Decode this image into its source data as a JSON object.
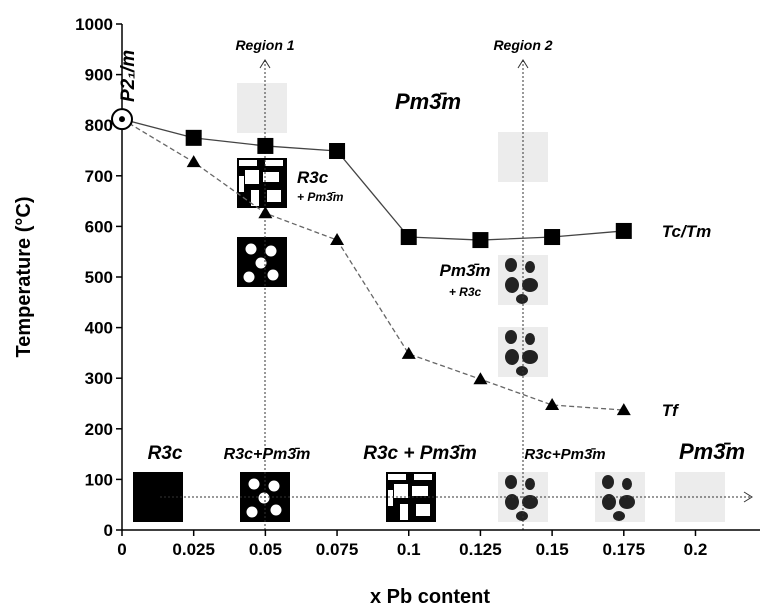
{
  "chart_data": {
    "type": "line",
    "xlabel": "x Pb content",
    "ylabel": "Temperature (°C)",
    "xlim": [
      0,
      0.2225
    ],
    "ylim": [
      0,
      1000
    ],
    "xticks": [
      0,
      0.025,
      0.05,
      0.075,
      0.1,
      0.125,
      0.15,
      0.175,
      0.2
    ],
    "yticks": [
      0,
      100,
      200,
      300,
      400,
      500,
      600,
      700,
      800,
      900,
      1000
    ],
    "transition": {
      "label": "P2₁/m",
      "x": 0,
      "value": 812
    },
    "series": [
      {
        "name": "Tc/Tm",
        "color": "#000000",
        "marker": "square",
        "dash": false,
        "x": [
          0.025,
          0.05,
          0.075,
          0.1,
          0.125,
          0.15,
          0.175
        ],
        "values": [
          775,
          759,
          749,
          579,
          573,
          579,
          591
        ]
      },
      {
        "name": "Tf",
        "color": "#000000",
        "marker": "triangle",
        "dash": true,
        "x": [
          0.025,
          0.05,
          0.075,
          0.1,
          0.125,
          0.15,
          0.175
        ],
        "values": [
          727,
          626,
          573,
          348,
          298,
          247,
          237
        ]
      }
    ],
    "annotations": [
      "Region 1",
      "Region 2",
      "Pm3̄m",
      "R3c",
      "+ Pm3̄m",
      "Pm3̄m",
      "+ R3c",
      "R3c",
      "R3c+Pm3̄m",
      "R3c + Pm3̄m",
      "R3c+Pm3̄m",
      "Pm3̄m"
    ]
  }
}
